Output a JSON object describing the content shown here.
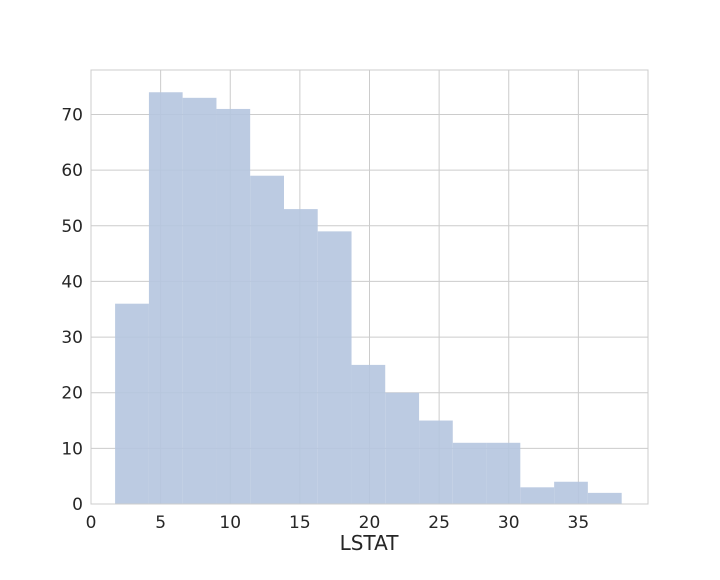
{
  "chart_data": {
    "type": "bar",
    "subtype": "histogram",
    "title": "",
    "xlabel": "LSTAT",
    "ylabel": "",
    "xlim": [
      0,
      40
    ],
    "ylim": [
      0,
      78
    ],
    "xticks": [
      0,
      5,
      10,
      15,
      20,
      25,
      30,
      35
    ],
    "yticks": [
      0,
      10,
      20,
      30,
      40,
      50,
      60,
      70
    ],
    "grid": true,
    "bins": [
      {
        "start": 1.73,
        "end": 4.16,
        "value": 36
      },
      {
        "start": 4.16,
        "end": 6.58,
        "value": 74
      },
      {
        "start": 6.58,
        "end": 9.01,
        "value": 73
      },
      {
        "start": 9.01,
        "end": 11.43,
        "value": 71
      },
      {
        "start": 11.43,
        "end": 13.86,
        "value": 59
      },
      {
        "start": 13.86,
        "end": 16.28,
        "value": 53
      },
      {
        "start": 16.28,
        "end": 18.71,
        "value": 49
      },
      {
        "start": 18.71,
        "end": 21.13,
        "value": 25
      },
      {
        "start": 21.13,
        "end": 23.56,
        "value": 20
      },
      {
        "start": 23.56,
        "end": 25.98,
        "value": 15
      },
      {
        "start": 25.98,
        "end": 28.41,
        "value": 11
      },
      {
        "start": 28.41,
        "end": 30.83,
        "value": 11
      },
      {
        "start": 30.83,
        "end": 33.26,
        "value": 3
      },
      {
        "start": 33.26,
        "end": 35.68,
        "value": 4
      },
      {
        "start": 35.68,
        "end": 38.11,
        "value": 2
      }
    ],
    "colors": {
      "bar": "#b5c5df",
      "grid": "#cccccc",
      "frame": "#cccccc"
    }
  }
}
